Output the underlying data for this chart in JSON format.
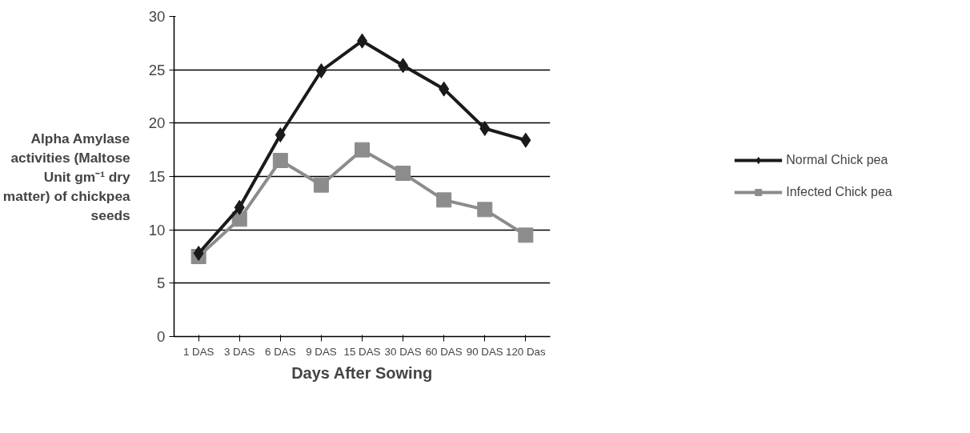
{
  "chart_data": {
    "type": "line",
    "xlabel": "Days After Sowing",
    "ylabel": "Alpha Amylase activities (Maltose Unit gm⁻¹ dry matter) of chickpea seeds",
    "categories": [
      "1 DAS",
      "3 DAS",
      "6 DAS",
      "9 DAS",
      "15 DAS",
      "30 DAS",
      "60 DAS",
      "90 DAS",
      "120 Das"
    ],
    "series": [
      {
        "name": "Normal Chick pea",
        "color": "#1a1a1a",
        "marker": "diamond",
        "values": [
          7.8,
          12.1,
          18.9,
          24.9,
          27.7,
          25.4,
          23.2,
          19.5,
          18.4
        ]
      },
      {
        "name": "Infected Chick pea",
        "color": "#8c8c8c",
        "marker": "square",
        "values": [
          7.5,
          11.0,
          16.5,
          14.2,
          17.5,
          15.3,
          12.8,
          11.9,
          9.5
        ]
      }
    ],
    "ylim": [
      0,
      30
    ],
    "yticks": [
      0,
      5,
      10,
      15,
      20,
      25,
      30
    ],
    "grid": "y",
    "legend": "right",
    "line_style": "solid"
  }
}
